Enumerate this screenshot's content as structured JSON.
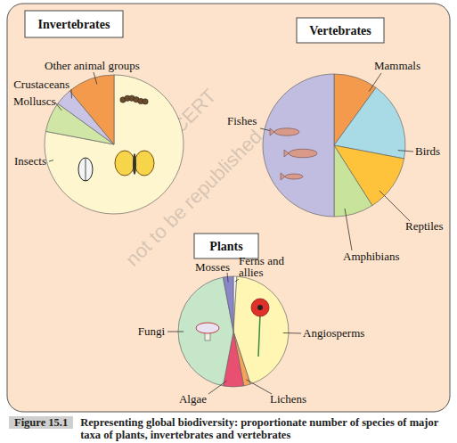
{
  "chart_data": [
    {
      "type": "pie",
      "title": "Invertebrates",
      "categories": [
        "Insects",
        "Molluscs",
        "Crustaceans",
        "Other animal groups"
      ],
      "values": [
        78,
        7,
        4,
        11
      ],
      "colors": [
        "#fdf6cf",
        "#cfe6a6",
        "#c9c4e6",
        "#f39a4c"
      ]
    },
    {
      "type": "pie",
      "title": "Vertebrates",
      "categories": [
        "Mammals",
        "Birds",
        "Reptiles",
        "Amphibians",
        "Fishes"
      ],
      "values": [
        10,
        18,
        13,
        9,
        50
      ],
      "colors": [
        "#f39a4c",
        "#a9dbe6",
        "#fec33b",
        "#c8e39a",
        "#c1bde0"
      ]
    },
    {
      "type": "pie",
      "title": "Plants",
      "categories": [
        "Ferns and allies",
        "Angiosperms",
        "Lichens",
        "Algae",
        "Fungi",
        "Mosses"
      ],
      "values": [
        1,
        44,
        2,
        6,
        44,
        3
      ],
      "colors": [
        "#ffffff",
        "#fef6b2",
        "#f6a25a",
        "#e94f71",
        "#c6e6c9",
        "#8b86c9"
      ]
    }
  ],
  "figure": {
    "label": "Figure 15.1",
    "caption": "Representing global biodiversity: proportionate number of species of major taxa of plants, invertebrates and vertebrates"
  },
  "watermark": [
    "© NCERT",
    "not to be republished"
  ]
}
